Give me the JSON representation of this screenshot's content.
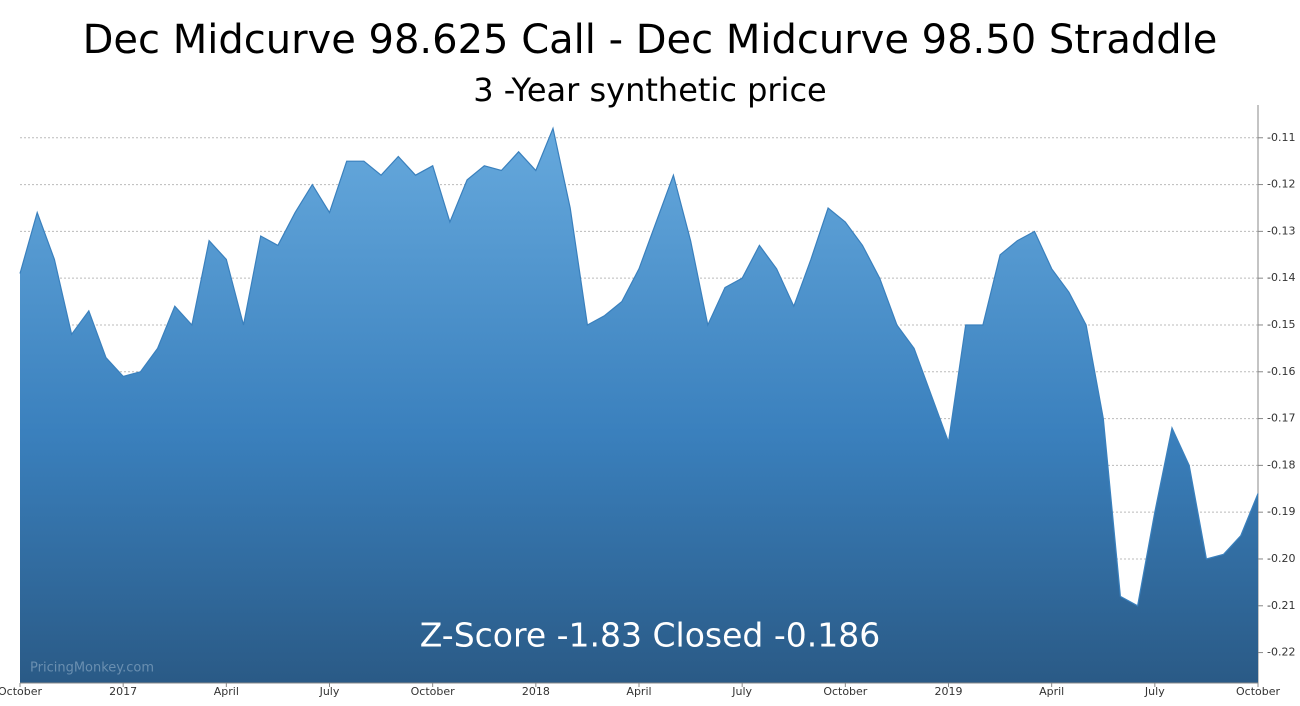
{
  "chart_data": {
    "type": "area",
    "title": "Dec Midcurve 98.625 Call - Dec Midcurve 98.50 Straddle",
    "subtitle": "3 -Year synthetic price",
    "annotation": "Z-Score -1.83 Closed -0.186",
    "watermark": "PricingMonkey.com",
    "categories": [
      "October",
      null,
      null,
      null,
      null,
      null,
      "2017",
      null,
      null,
      null,
      null,
      null,
      "April",
      null,
      null,
      null,
      null,
      null,
      "July",
      null,
      null,
      null,
      null,
      null,
      "October",
      null,
      null,
      null,
      null,
      null,
      "2018",
      null,
      null,
      null,
      null,
      null,
      "April",
      null,
      null,
      null,
      null,
      null,
      "July",
      null,
      null,
      null,
      null,
      null,
      "October",
      null,
      null,
      null,
      null,
      null,
      "2019",
      null,
      null,
      null,
      null,
      null,
      "April",
      null,
      null,
      null,
      null,
      null,
      "July",
      null,
      null,
      null,
      null,
      null,
      "October"
    ],
    "values": [
      -0.139,
      -0.126,
      -0.136,
      -0.152,
      -0.147,
      -0.157,
      -0.161,
      -0.16,
      -0.155,
      -0.146,
      -0.15,
      -0.132,
      -0.136,
      -0.15,
      -0.131,
      -0.133,
      -0.126,
      -0.12,
      -0.126,
      -0.115,
      -0.115,
      -0.118,
      -0.114,
      -0.118,
      -0.116,
      -0.128,
      -0.119,
      -0.116,
      -0.117,
      -0.113,
      -0.117,
      -0.108,
      -0.125,
      -0.15,
      -0.148,
      -0.145,
      -0.138,
      -0.128,
      -0.118,
      -0.132,
      -0.15,
      -0.142,
      -0.14,
      -0.133,
      -0.138,
      -0.146,
      -0.136,
      -0.125,
      -0.128,
      -0.133,
      -0.14,
      -0.15,
      -0.155,
      -0.165,
      -0.175,
      -0.15,
      -0.15,
      -0.135,
      -0.132,
      -0.13,
      -0.138,
      -0.143,
      -0.15,
      -0.17,
      -0.208,
      -0.21,
      -0.19,
      -0.172,
      -0.18,
      -0.2,
      -0.199,
      -0.195,
      -0.186
    ],
    "color": "#3a80bd",
    "ylim": [
      -0.2265,
      -0.103
    ],
    "yticks": [
      -0.11,
      -0.12,
      -0.13,
      -0.14,
      -0.15,
      -0.16,
      -0.17,
      -0.18,
      -0.19,
      {
        "value": -0.2,
        "label": "-0.20"
      },
      -0.21,
      -0.22
    ],
    "grid": true
  }
}
